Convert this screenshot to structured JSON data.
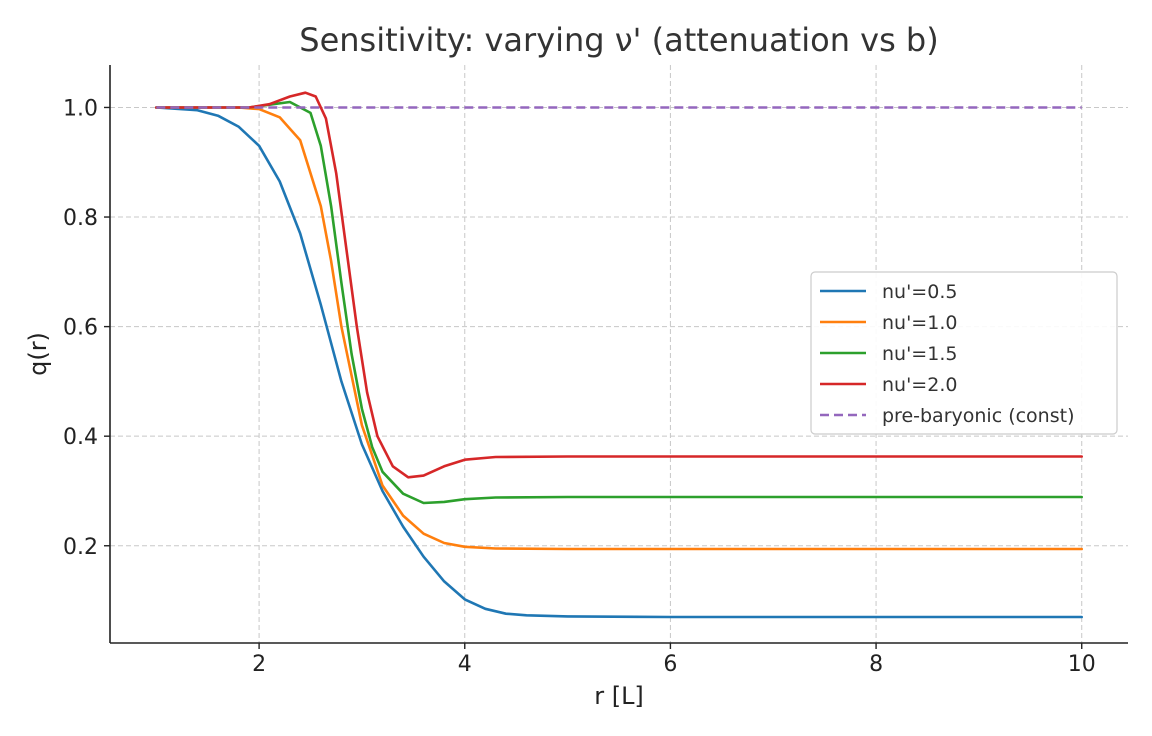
{
  "chart_data": {
    "type": "line",
    "title": "Sensitivity: varying ν' (attenuation vs b)",
    "xlabel": "r [L]",
    "ylabel": "q(r)",
    "xlim": [
      0.55,
      10.45
    ],
    "ylim": [
      0.0225,
      1.0775
    ],
    "xticks": [
      2,
      4,
      6,
      8,
      10
    ],
    "yticks": [
      0.2,
      0.4,
      0.6,
      0.8,
      1.0
    ],
    "xtick_labels": [
      "2",
      "4",
      "6",
      "8",
      "10"
    ],
    "ytick_labels": [
      "0.2",
      "0.4",
      "0.6",
      "0.8",
      "1.0"
    ],
    "grid": true,
    "legend_position": "center-right",
    "series": [
      {
        "name": "nu'=0.5",
        "color": "#1f77b4",
        "style": "solid",
        "points": [
          [
            1.0,
            1.0
          ],
          [
            1.4,
            0.995
          ],
          [
            1.6,
            0.985
          ],
          [
            1.8,
            0.965
          ],
          [
            2.0,
            0.93
          ],
          [
            2.2,
            0.865
          ],
          [
            2.4,
            0.77
          ],
          [
            2.6,
            0.64
          ],
          [
            2.8,
            0.5
          ],
          [
            3.0,
            0.385
          ],
          [
            3.2,
            0.3
          ],
          [
            3.4,
            0.235
          ],
          [
            3.6,
            0.18
          ],
          [
            3.8,
            0.135
          ],
          [
            4.0,
            0.102
          ],
          [
            4.2,
            0.085
          ],
          [
            4.4,
            0.076
          ],
          [
            4.6,
            0.073
          ],
          [
            5.0,
            0.071
          ],
          [
            6.0,
            0.07
          ],
          [
            8.0,
            0.07
          ],
          [
            10.0,
            0.07
          ]
        ]
      },
      {
        "name": "nu'=1.0",
        "color": "#ff7f0e",
        "style": "solid",
        "points": [
          [
            1.0,
            1.0
          ],
          [
            1.8,
            1.0
          ],
          [
            2.0,
            0.997
          ],
          [
            2.2,
            0.982
          ],
          [
            2.4,
            0.94
          ],
          [
            2.6,
            0.82
          ],
          [
            2.7,
            0.72
          ],
          [
            2.8,
            0.6
          ],
          [
            3.0,
            0.42
          ],
          [
            3.2,
            0.31
          ],
          [
            3.4,
            0.255
          ],
          [
            3.6,
            0.222
          ],
          [
            3.8,
            0.205
          ],
          [
            4.0,
            0.198
          ],
          [
            4.3,
            0.195
          ],
          [
            5.0,
            0.194
          ],
          [
            10.0,
            0.194
          ]
        ]
      },
      {
        "name": "nu'=1.5",
        "color": "#2ca02c",
        "style": "solid",
        "points": [
          [
            1.0,
            1.0
          ],
          [
            1.9,
            1.0
          ],
          [
            2.1,
            1.005
          ],
          [
            2.3,
            1.01
          ],
          [
            2.5,
            0.99
          ],
          [
            2.6,
            0.93
          ],
          [
            2.7,
            0.82
          ],
          [
            2.8,
            0.68
          ],
          [
            2.9,
            0.55
          ],
          [
            3.0,
            0.45
          ],
          [
            3.1,
            0.38
          ],
          [
            3.2,
            0.335
          ],
          [
            3.4,
            0.295
          ],
          [
            3.6,
            0.278
          ],
          [
            3.8,
            0.28
          ],
          [
            4.0,
            0.285
          ],
          [
            4.3,
            0.288
          ],
          [
            5.0,
            0.289
          ],
          [
            10.0,
            0.289
          ]
        ]
      },
      {
        "name": "nu'=2.0",
        "color": "#d62728",
        "style": "solid",
        "points": [
          [
            1.0,
            1.0
          ],
          [
            1.9,
            1.0
          ],
          [
            2.1,
            1.006
          ],
          [
            2.3,
            1.02
          ],
          [
            2.45,
            1.027
          ],
          [
            2.55,
            1.02
          ],
          [
            2.65,
            0.98
          ],
          [
            2.75,
            0.88
          ],
          [
            2.85,
            0.74
          ],
          [
            2.95,
            0.6
          ],
          [
            3.05,
            0.48
          ],
          [
            3.15,
            0.4
          ],
          [
            3.3,
            0.345
          ],
          [
            3.45,
            0.325
          ],
          [
            3.6,
            0.328
          ],
          [
            3.8,
            0.345
          ],
          [
            4.0,
            0.357
          ],
          [
            4.3,
            0.362
          ],
          [
            5.0,
            0.363
          ],
          [
            10.0,
            0.363
          ]
        ]
      },
      {
        "name": "pre-baryonic (const)",
        "color": "#9467bd",
        "style": "dashed",
        "points": [
          [
            1.0,
            1.0
          ],
          [
            10.0,
            1.0
          ]
        ]
      }
    ]
  }
}
